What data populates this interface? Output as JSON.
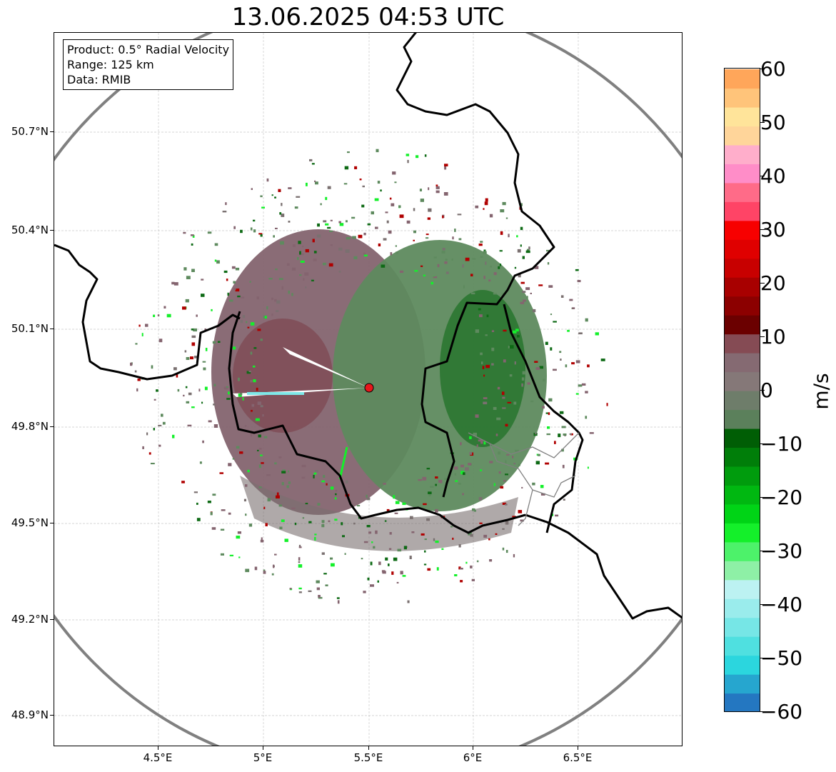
{
  "title": "13.06.2025 04:53 UTC",
  "info_box": {
    "line1": "Product: 0.5° Radial Velocity",
    "line2": "Range: 125 km",
    "line3": "Data: RMIB"
  },
  "axes": {
    "lat_labels": [
      "50.7°N",
      "50.4°N",
      "50.1°N",
      "49.8°N",
      "49.5°N",
      "49.2°N",
      "48.9°N"
    ],
    "lon_labels": [
      "4.5°E",
      "5°E",
      "5.5°E",
      "6°E",
      "6.5°E"
    ]
  },
  "radar_site": {
    "color": "#e8161b"
  },
  "colorbar": {
    "label": "m/s",
    "ticks": [
      "60",
      "50",
      "40",
      "30",
      "20",
      "10",
      "0",
      "−10",
      "−20",
      "−30",
      "−40",
      "−50",
      "−60"
    ],
    "colors": [
      "#2477c1",
      "#26a6cf",
      "#2bd6de",
      "#4fe0e0",
      "#76e6e6",
      "#9aecec",
      "#bcf2f2",
      "#8ef0a6",
      "#4df26a",
      "#14f02a",
      "#00d416",
      "#00b811",
      "#009c0d",
      "#007e09",
      "#005e05",
      "#5b805b",
      "#6e7d6a",
      "#857878",
      "#856a72",
      "#854b54",
      "#6b0000",
      "#8c0000",
      "#a80000",
      "#c80000",
      "#e00000",
      "#f70000",
      "#ff4466",
      "#ff6b88",
      "#ff8dc8",
      "#ffaecb",
      "#ffd59a",
      "#ffe49a",
      "#ffc47a",
      "#ffa65a"
    ]
  },
  "map_colors": {
    "approaching_green": "#5e8a5e",
    "receding_mauve": "#84646f",
    "border": "#000000",
    "range_ring": "#808080"
  }
}
